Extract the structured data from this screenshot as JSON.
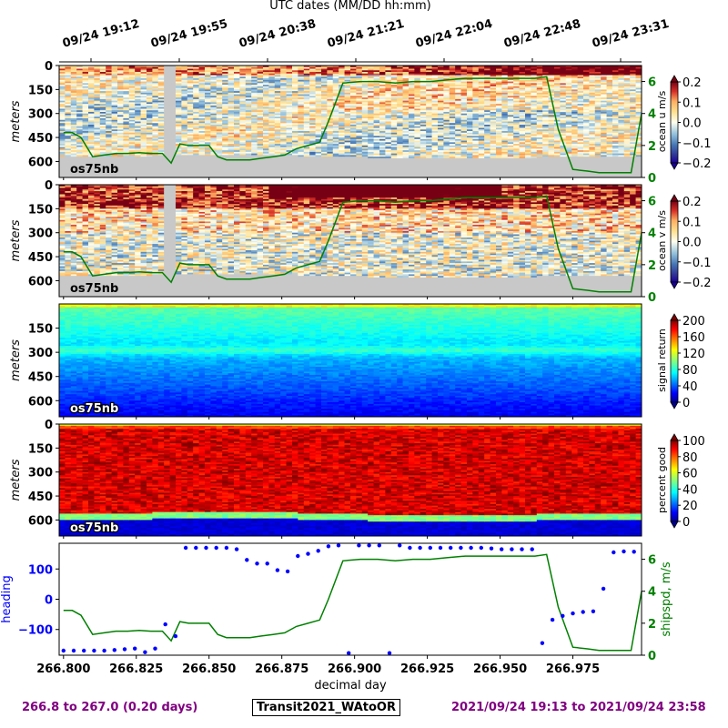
{
  "top_axis": {
    "title": "UTC dates (MM/DD hh:mm)",
    "ticks": [
      "09/24 19:12",
      "09/24 19:55",
      "09/24 20:38",
      "09/24 21:21",
      "09/24 22:04",
      "09/24 22:48",
      "09/24 23:31"
    ]
  },
  "footer": {
    "left": "266.8 to 267.0 (0.20 days)",
    "center": "Transit2021_WAtoOR",
    "right": "2021/09/24 19:13 to 2021/09/24 23:58"
  },
  "colors": {
    "heading": "#0000ff",
    "shipspd": "#008000",
    "footer": "#800080",
    "nodata": "#c8c8c8"
  },
  "chart_data": [
    {
      "type": "heatmap",
      "panel": "ocean u",
      "ylabel": "meters",
      "yticks": [
        0,
        150,
        300,
        450,
        600
      ],
      "ylim": [
        700,
        0
      ],
      "instrument_label": "os75nb",
      "colorbar": {
        "label": "ocean u m/s",
        "ticks": [
          "0.2",
          "0.1",
          "0.0",
          "−0.1",
          "−0.2"
        ],
        "range": [
          -0.2,
          0.2
        ],
        "cmap": "RdYlBu_r"
      },
      "overlay": {
        "series": "shipspd",
        "ticks": [
          "6",
          "4",
          "2",
          "0"
        ],
        "range": [
          0,
          7
        ]
      }
    },
    {
      "type": "heatmap",
      "panel": "ocean v",
      "ylabel": "meters",
      "yticks": [
        0,
        150,
        300,
        450,
        600
      ],
      "ylim": [
        700,
        0
      ],
      "instrument_label": "os75nb",
      "colorbar": {
        "label": "ocean v m/s",
        "ticks": [
          "0.2",
          "0.1",
          "0.0",
          "−0.1",
          "−0.2"
        ],
        "range": [
          -0.2,
          0.2
        ],
        "cmap": "RdYlBu_r"
      },
      "overlay": {
        "series": "shipspd",
        "ticks": [
          "6",
          "4",
          "2",
          "0"
        ],
        "range": [
          0,
          7
        ]
      }
    },
    {
      "type": "heatmap",
      "panel": "signal return",
      "ylabel": "meters",
      "yticks": [
        150,
        300,
        450,
        600
      ],
      "ylim": [
        700,
        0
      ],
      "instrument_label": "os75nb",
      "colorbar": {
        "label": "signal return",
        "ticks": [
          "200",
          "160",
          "120",
          "80",
          "40",
          "0"
        ],
        "range": [
          0,
          200
        ],
        "cmap": "jet"
      }
    },
    {
      "type": "heatmap",
      "panel": "percent good",
      "ylabel": "meters",
      "yticks": [
        0,
        150,
        300,
        450,
        600
      ],
      "ylim": [
        700,
        0
      ],
      "instrument_label": "os75nb",
      "colorbar": {
        "label": "percent good",
        "ticks": [
          "100",
          "80",
          "60",
          "40",
          "20",
          "0"
        ],
        "range": [
          0,
          100
        ],
        "cmap": "jet"
      }
    },
    {
      "type": "scatter",
      "panel": "heading and ship speed",
      "xlabel": "decimal day",
      "xticks": [
        "266.800",
        "266.825",
        "266.850",
        "266.875",
        "266.900",
        "266.925",
        "266.950",
        "266.975"
      ],
      "xlim": [
        266.7985,
        266.9986
      ],
      "ylabel": "heading",
      "yticks": [
        "100",
        "0",
        "−100"
      ],
      "ylim": [
        -185,
        185
      ],
      "y2label": "shipspd, m/s",
      "y2ticks": [
        "6",
        "4",
        "2",
        "0"
      ],
      "y2lim": [
        0,
        7
      ],
      "series": [
        {
          "name": "heading",
          "x": [
            266.8,
            266.8035,
            266.807,
            266.8105,
            266.814,
            266.8175,
            266.821,
            266.8245,
            266.828,
            266.8315,
            266.835,
            266.8385,
            266.842,
            266.8455,
            266.849,
            266.8525,
            266.856,
            266.8595,
            266.863,
            266.8665,
            266.87,
            266.8735,
            266.877,
            266.8805,
            266.884,
            266.8875,
            266.891,
            266.8945,
            266.898,
            266.9015,
            266.905,
            266.9085,
            266.912,
            266.9155,
            266.919,
            266.9225,
            266.926,
            266.9295,
            266.933,
            266.9365,
            266.94,
            266.9435,
            266.947,
            266.9505,
            266.954,
            266.9575,
            266.961,
            266.9645,
            266.968,
            266.9715,
            266.975,
            266.9785,
            266.982,
            266.9855,
            266.989,
            266.9925,
            266.996
          ],
          "values": [
            -170,
            -170,
            -170,
            -170,
            -170,
            -168,
            -165,
            -163,
            -175,
            -163,
            -83,
            -122,
            170,
            170,
            170,
            170,
            170,
            165,
            130,
            118,
            118,
            96,
            92,
            143,
            150,
            160,
            175,
            178,
            -178,
            178,
            178,
            178,
            -178,
            178,
            170,
            170,
            170,
            170,
            170,
            170,
            170,
            170,
            168,
            165,
            165,
            165,
            165,
            -145,
            -68,
            -55,
            -47,
            -42,
            -40,
            35,
            155,
            158,
            157
          ]
        },
        {
          "name": "shipspd",
          "x": [
            266.8,
            266.803,
            266.806,
            266.81,
            266.814,
            266.818,
            266.822,
            266.826,
            266.83,
            266.834,
            266.837,
            266.84,
            266.843,
            266.846,
            266.85,
            266.853,
            266.856,
            266.86,
            266.864,
            266.868,
            266.872,
            266.876,
            266.88,
            266.884,
            266.888,
            266.891,
            266.896,
            266.902,
            266.908,
            266.914,
            266.92,
            266.926,
            266.932,
            266.938,
            266.944,
            266.95,
            266.956,
            266.962,
            266.966,
            266.97,
            266.975,
            266.98,
            266.984,
            266.988,
            266.992,
            266.995,
            266.9986
          ],
          "values": [
            2.8,
            2.8,
            2.5,
            1.3,
            1.4,
            1.5,
            1.5,
            1.55,
            1.5,
            1.5,
            0.9,
            2.1,
            2.0,
            2.0,
            2.0,
            1.3,
            1.1,
            1.1,
            1.1,
            1.2,
            1.3,
            1.4,
            1.8,
            2.0,
            2.2,
            3.5,
            5.9,
            6.0,
            6.0,
            5.9,
            6.0,
            6.0,
            6.1,
            6.2,
            6.2,
            6.2,
            6.2,
            6.2,
            6.3,
            3.0,
            0.5,
            0.4,
            0.3,
            0.3,
            0.3,
            0.3,
            4.0
          ]
        }
      ]
    }
  ]
}
